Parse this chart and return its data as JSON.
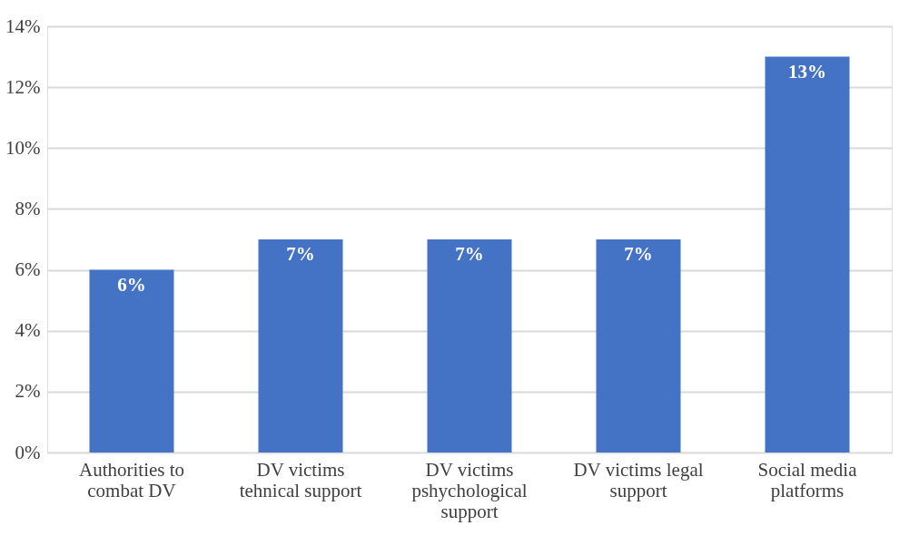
{
  "chart_data": {
    "type": "bar",
    "categories": [
      "Authorities to combat DV",
      "DV victims tehnical support",
      "DV victims pshychological support",
      "DV victims legal support",
      "Social media platforms"
    ],
    "values": [
      6,
      7,
      7,
      7,
      13
    ],
    "value_labels": [
      "6%",
      "7%",
      "7%",
      "7%",
      "13%"
    ],
    "color": "#4472c4",
    "ylim": [
      0,
      14
    ],
    "yticks": [
      {
        "value": 0,
        "label": "0%"
      },
      {
        "value": 2,
        "label": "2%"
      },
      {
        "value": 4,
        "label": "4%"
      },
      {
        "value": 6,
        "label": "6%"
      },
      {
        "value": 8,
        "label": "8%"
      },
      {
        "value": 10,
        "label": "10%"
      },
      {
        "value": 12,
        "label": "12%"
      },
      {
        "value": 14,
        "label": "14%"
      }
    ],
    "grid": "y"
  }
}
